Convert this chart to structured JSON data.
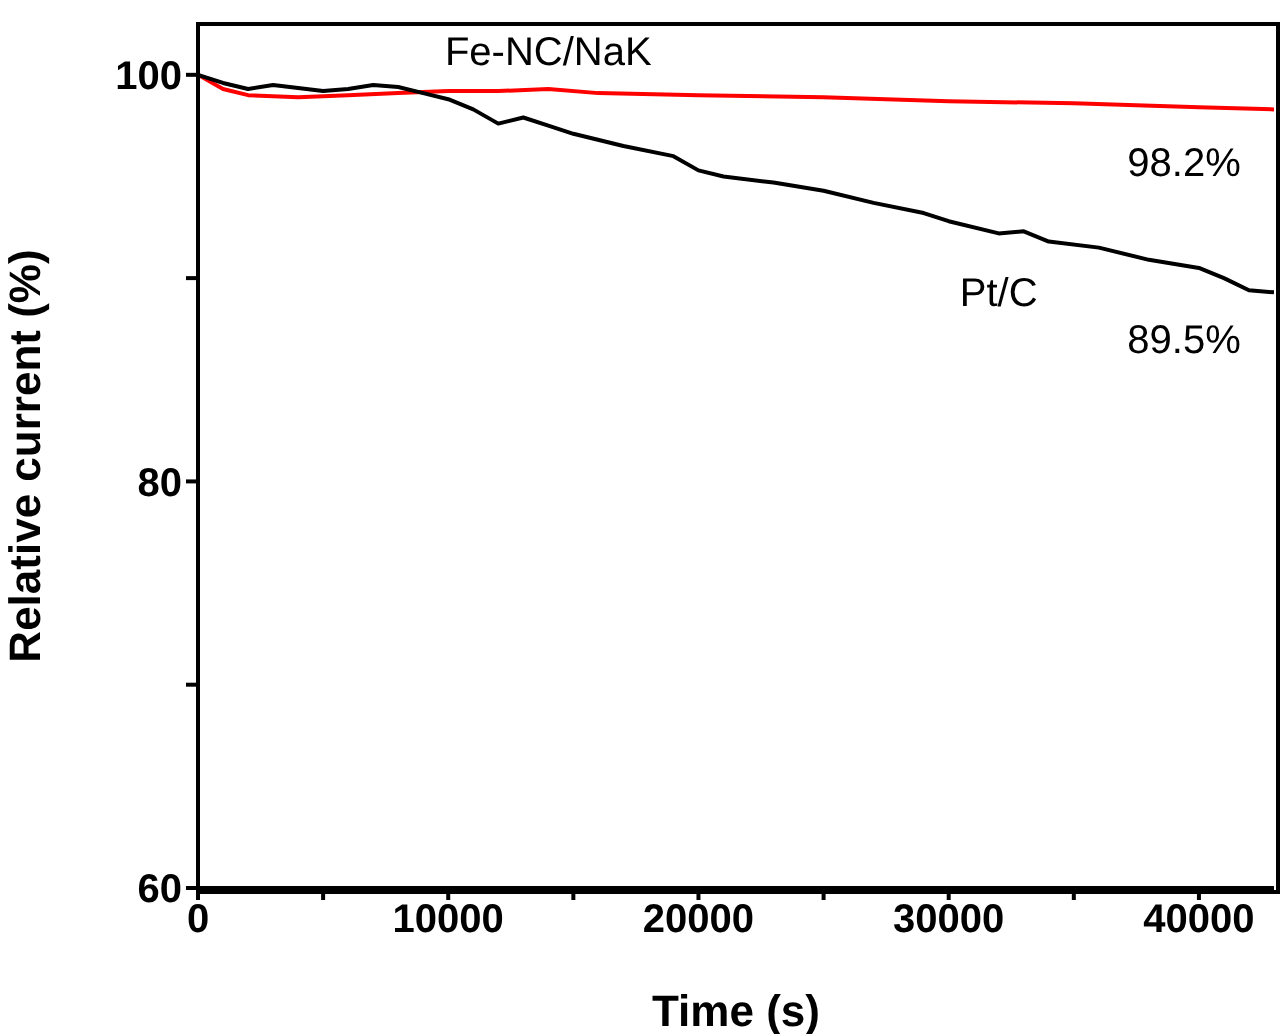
{
  "chart_data": {
    "type": "line",
    "xlabel": "Time (s)",
    "ylabel": "Relative current (%)",
    "xlim": [
      0,
      43000
    ],
    "ylim": [
      60,
      102.5
    ],
    "xticks": [
      0,
      {
        "value": 5000,
        "label": null
      },
      10000,
      {
        "value": 15000,
        "label": null
      },
      20000,
      {
        "value": 25000,
        "label": null
      },
      30000,
      {
        "value": 35000,
        "label": null
      },
      40000
    ],
    "yticks": [
      60,
      {
        "value": 70,
        "label": null
      },
      80,
      {
        "value": 90,
        "label": null
      },
      100
    ],
    "marker": "none",
    "line_style": "solid",
    "series": [
      {
        "name": "Fe-NC/NaK",
        "color": "#ff0000",
        "x": [
          0,
          1000,
          2000,
          4000,
          6000,
          8000,
          10000,
          12000,
          14000,
          16000,
          20000,
          25000,
          30000,
          35000,
          40000,
          43000
        ],
        "values": [
          100,
          99.3,
          99.0,
          98.9,
          99.0,
          99.1,
          99.2,
          99.2,
          99.3,
          99.1,
          99.0,
          98.9,
          98.7,
          98.6,
          98.4,
          98.3
        ]
      },
      {
        "name": "Pt/C",
        "color": "#000000",
        "x": [
          0,
          1000,
          2000,
          3000,
          5000,
          6000,
          7000,
          8000,
          9000,
          10000,
          11000,
          12000,
          13000,
          14000,
          15000,
          17000,
          19000,
          20000,
          21000,
          23000,
          25000,
          27000,
          29000,
          30000,
          32000,
          33000,
          34000,
          36000,
          38000,
          40000,
          41000,
          42000,
          43000
        ],
        "values": [
          100,
          99.6,
          99.3,
          99.5,
          99.2,
          99.3,
          99.5,
          99.4,
          99.1,
          98.8,
          98.3,
          97.6,
          97.9,
          97.5,
          97.1,
          96.5,
          96.0,
          95.3,
          95.0,
          94.7,
          94.3,
          93.7,
          93.2,
          92.8,
          92.2,
          92.3,
          91.8,
          91.5,
          90.9,
          90.5,
          90.0,
          89.4,
          89.3
        ]
      }
    ],
    "annotations": [
      {
        "text": "98.2%",
        "x": 43000,
        "y": 98.2
      },
      {
        "text": "89.5%",
        "x": 43000,
        "y": 89.5
      }
    ]
  }
}
